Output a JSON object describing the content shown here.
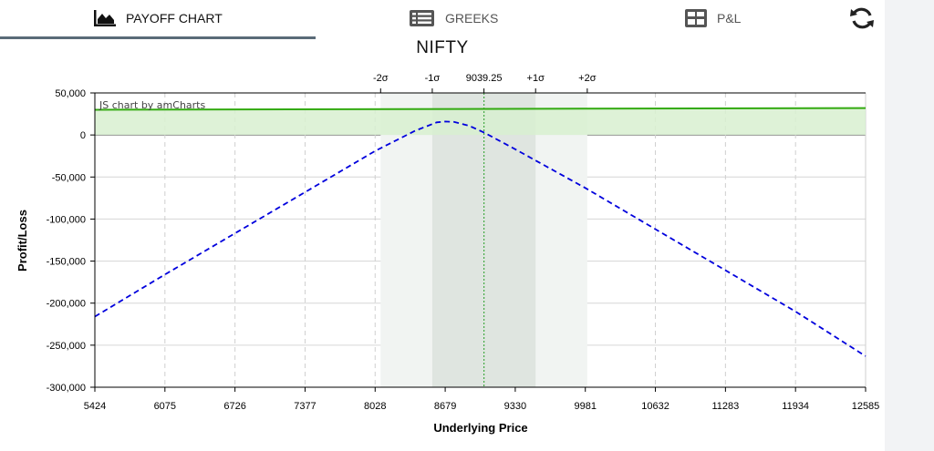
{
  "tabs": [
    {
      "label": "PAYOFF CHART",
      "icon": "area-chart-icon",
      "active": true
    },
    {
      "label": "GREEKS",
      "icon": "list-icon",
      "active": false
    },
    {
      "label": "P&L",
      "icon": "grid-table-icon",
      "active": false
    }
  ],
  "refresh_icon": "refresh-icon",
  "credit": "JS chart by amCharts",
  "colors": {
    "payoff_line": "#0000dd",
    "target_line": "#33aa11",
    "profit_fill": "#d8f0d0",
    "sigma_band": "#dfe5e0",
    "spot_line": "#44aa44"
  },
  "chart_data": {
    "type": "line",
    "title": "NIFTY",
    "xlabel": "Underlying Price",
    "ylabel": "Profit/Loss",
    "xlim": [
      5424,
      12585
    ],
    "ylim": [
      -300000,
      50000
    ],
    "x_ticks": [
      5424,
      6075,
      6726,
      7377,
      8028,
      8679,
      9330,
      9981,
      10632,
      11283,
      11934,
      12585
    ],
    "y_ticks": [
      50000,
      0,
      -50000,
      -100000,
      -150000,
      -200000,
      -250000,
      -300000
    ],
    "y_tick_labels": [
      "50,000",
      "0",
      "-50,000",
      "-100,000",
      "-150,000",
      "-200,000",
      "-250,000",
      "-300,000"
    ],
    "spot": {
      "value": 9039.25,
      "label": "9039.25"
    },
    "sigma_markers": [
      {
        "label": "-2σ",
        "x": 8079
      },
      {
        "label": "-1σ",
        "x": 8559
      },
      {
        "label": "9039.25",
        "x": 9039.25
      },
      {
        "label": "+1σ",
        "x": 9519
      },
      {
        "label": "+2σ",
        "x": 9999
      }
    ],
    "series": [
      {
        "style": "dashed",
        "x": [
          5424,
          6075,
          6726,
          7377,
          8028,
          8400,
          8600,
          8679,
          8760,
          8900,
          9039.25,
          9330,
          9981,
          10632,
          11283,
          11934,
          12585
        ],
        "values": [
          -216000,
          -166000,
          -117000,
          -68000,
          -19000,
          5000,
          15000,
          16000,
          15500,
          11000,
          3000,
          -17000,
          -63000,
          -112000,
          -161000,
          -210000,
          -263000
        ]
      },
      {
        "style": "solid",
        "x": [
          5424,
          12585
        ],
        "values": [
          30000,
          32000
        ]
      }
    ]
  }
}
